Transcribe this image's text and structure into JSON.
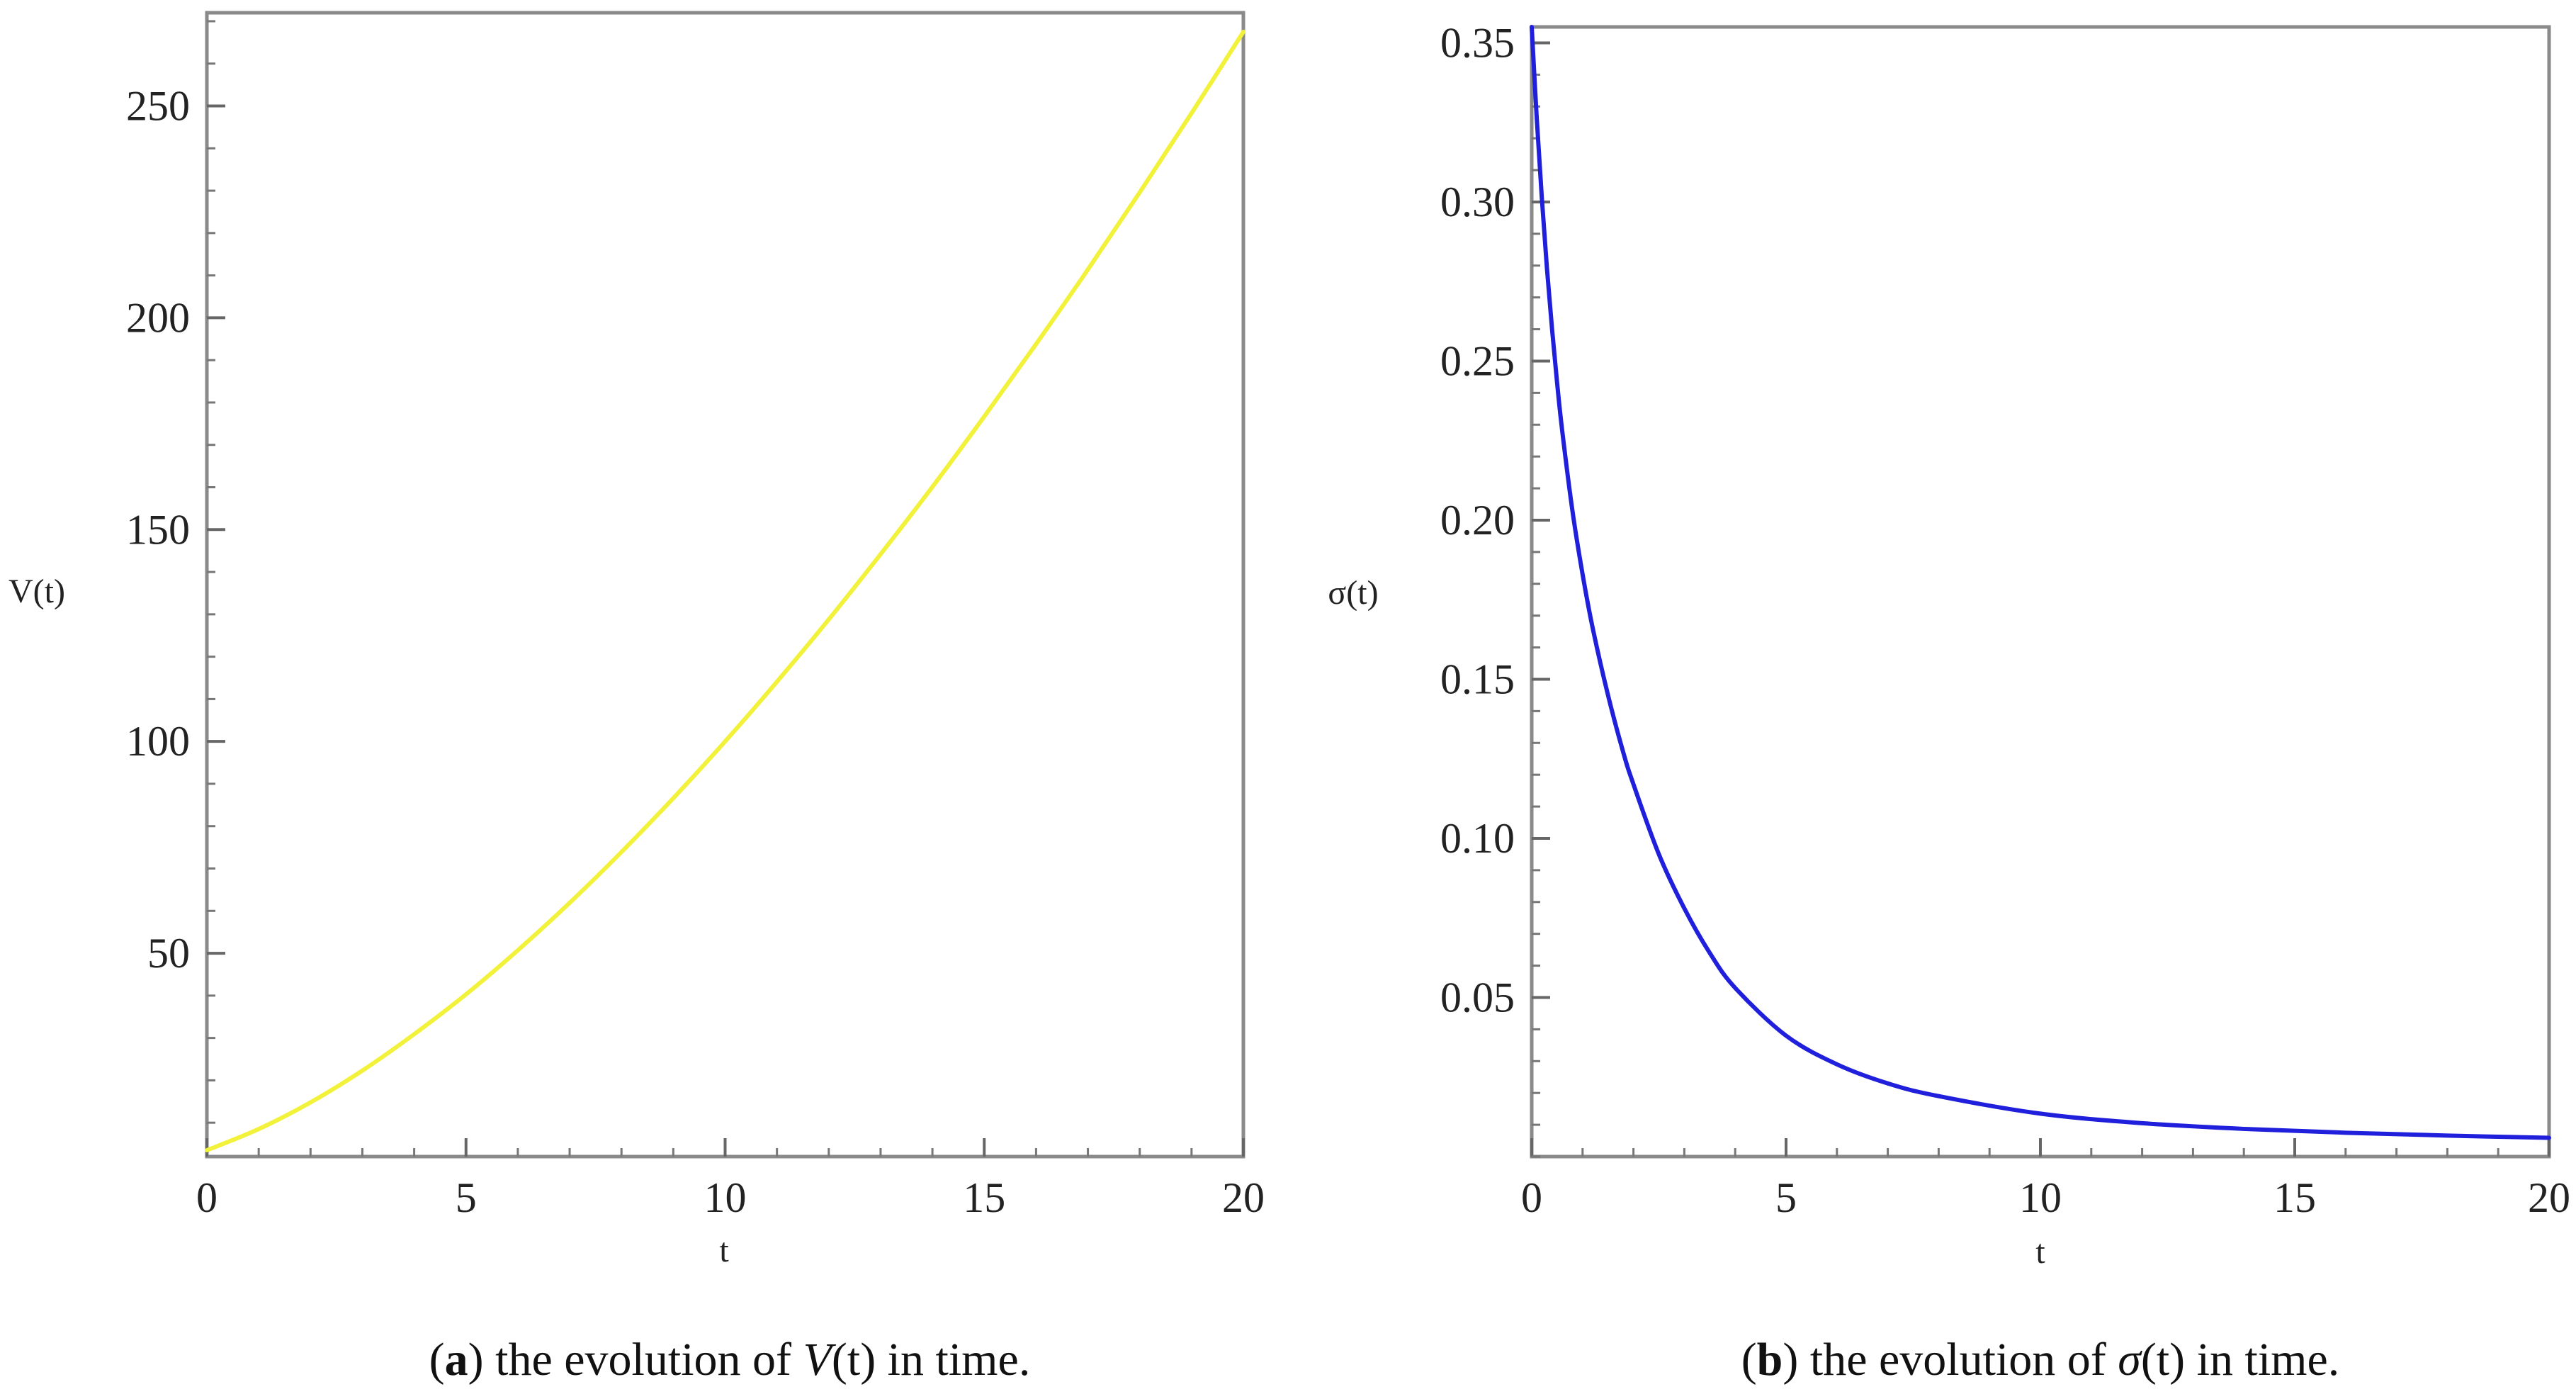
{
  "chart_data": [
    {
      "type": "line",
      "panel": "a",
      "title": "",
      "xlabel": "t",
      "ylabel": "V(t)",
      "xlim": [
        0,
        20
      ],
      "ylim": [
        2,
        272
      ],
      "xticks": [
        0,
        5,
        10,
        15,
        20
      ],
      "xtick_labels": [
        "0",
        "5",
        "10",
        "15",
        "20"
      ],
      "yticks": [
        50,
        100,
        150,
        200,
        250
      ],
      "ytick_labels": [
        "50",
        "100",
        "150",
        "200",
        "250"
      ],
      "series": [
        {
          "name": "V(t)",
          "color": "#f2f23a",
          "x": [
            0,
            1,
            2,
            3,
            4,
            5,
            6,
            7,
            8,
            9,
            10,
            11,
            12,
            13,
            14,
            15,
            16,
            17,
            18,
            19,
            20
          ],
          "y": [
            3.5,
            8.5,
            14.8,
            22.3,
            30.9,
            40.3,
            50.7,
            61.9,
            73.9,
            86.6,
            100.0,
            114.1,
            128.8,
            144.2,
            160.1,
            176.7,
            193.8,
            211.4,
            229.6,
            248.3,
            267.5
          ]
        }
      ],
      "caption": {
        "label": "a",
        "open": "(",
        "close": ")",
        "text_before": " the evolution of ",
        "symbol": "V",
        "arg": "(t)",
        "text_after": " in time."
      }
    },
    {
      "type": "line",
      "panel": "b",
      "title": "",
      "xlabel": "t",
      "ylabel": "σ(t)",
      "xlim": [
        0,
        20
      ],
      "ylim": [
        0.0,
        0.355
      ],
      "xticks": [
        0,
        5,
        10,
        15,
        20
      ],
      "xtick_labels": [
        "0",
        "5",
        "10",
        "15",
        "20"
      ],
      "yticks": [
        0.05,
        0.1,
        0.15,
        0.2,
        0.25,
        0.3,
        0.35
      ],
      "ytick_labels": [
        "0.05",
        "0.10",
        "0.15",
        "0.20",
        "0.25",
        "0.30",
        "0.35"
      ],
      "series": [
        {
          "name": "σ(t)",
          "color": "#1f1fdc",
          "x": [
            0,
            0.1,
            0.2,
            0.3,
            0.4,
            0.5,
            0.6,
            0.8,
            1.0,
            1.2,
            1.5,
            1.8,
            2.0,
            2.5,
            3.0,
            3.5,
            4.0,
            5.0,
            6.0,
            7.0,
            8.0,
            10.0,
            12.0,
            14.0,
            16.0,
            18.0,
            20.0
          ],
          "y": [
            0.355,
            0.326,
            0.301,
            0.279,
            0.26,
            0.243,
            0.228,
            0.203,
            0.183,
            0.166,
            0.145,
            0.127,
            0.117,
            0.095,
            0.078,
            0.064,
            0.053,
            0.038,
            0.029,
            0.023,
            0.019,
            0.0135,
            0.0105,
            0.0087,
            0.0075,
            0.0066,
            0.0059
          ]
        }
      ],
      "caption": {
        "label": "b",
        "open": "(",
        "close": ")",
        "text_before": " the evolution of ",
        "symbol": "σ",
        "arg": "(t)",
        "text_after": " in time."
      }
    }
  ]
}
